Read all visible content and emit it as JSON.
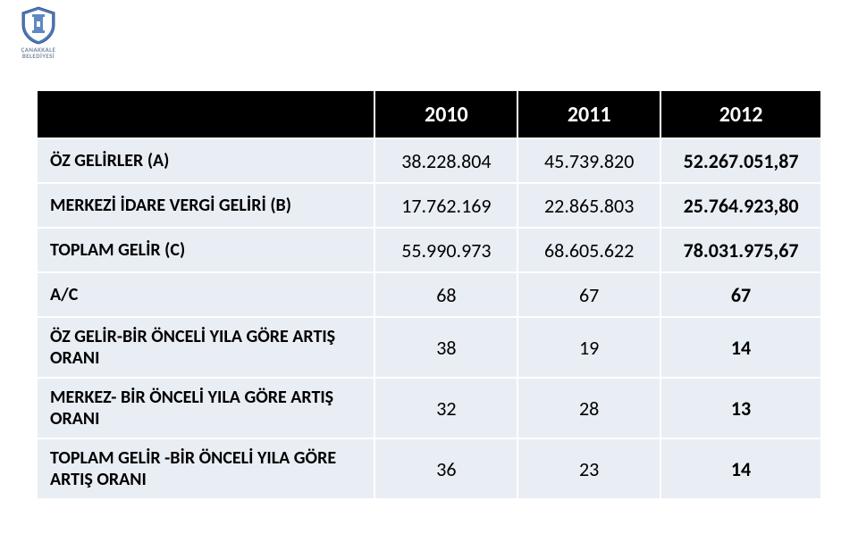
{
  "logo": {
    "line1": "ÇANAKKALE",
    "line2": "BELEDİYESİ",
    "shield_outer": "#4f77b4",
    "shield_inner": "#ffffff",
    "tower_color": "#5e88c3"
  },
  "table": {
    "header_bg": "#000000",
    "header_fg": "#ffffff",
    "body_bg": "#e9edf4",
    "body_fg": "#000000",
    "border_color": "#ffffff",
    "label_fontsize": 20,
    "num_fontsize": 22,
    "header_fontsize": 24,
    "columns": [
      "",
      "2010",
      "2011",
      "2012"
    ],
    "rows": [
      {
        "label": "ÖZ GELİRLER (A)",
        "c2010": "38.228.804",
        "c2011": "45.739.820",
        "c2012": "52.267.051,87",
        "tall": false,
        "bold2012": true
      },
      {
        "label": "MERKEZİ İDARE VERGİ GELİRİ (B)",
        "c2010": "17.762.169",
        "c2011": "22.865.803",
        "c2012": "25.764.923,80",
        "tall": false,
        "bold2012": true
      },
      {
        "label": "TOPLAM GELİR (C)",
        "c2010": "55.990.973",
        "c2011": "68.605.622",
        "c2012": "78.031.975,67",
        "tall": false,
        "bold2012": true
      },
      {
        "label": "A/C",
        "c2010": "68",
        "c2011": "67",
        "c2012": "67",
        "tall": false,
        "bold2012": true
      },
      {
        "label": "ÖZ GELİR-BİR ÖNCELİ YILA GÖRE ARTIŞ ORANI",
        "c2010": "38",
        "c2011": "19",
        "c2012": "14",
        "tall": true,
        "bold2012": true
      },
      {
        "label": "MERKEZ- BİR ÖNCELİ YILA GÖRE ARTIŞ ORANI",
        "c2010": "32",
        "c2011": "28",
        "c2012": "13",
        "tall": true,
        "bold2012": true
      },
      {
        "label": "TOPLAM GELİR -BİR ÖNCELİ YILA GÖRE ARTIŞ ORANI",
        "c2010": "36",
        "c2011": "23",
        "c2012": "14",
        "tall": true,
        "bold2012": true
      }
    ]
  }
}
